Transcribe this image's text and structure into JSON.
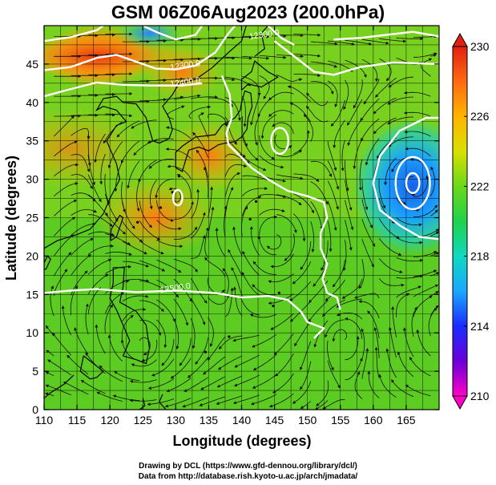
{
  "title": "GSM 06Z06Aug2023 (200.0hPa)",
  "credits": [
    "Drawing by DCL (https://www.gfd-dennou.org/library/dcl/)",
    "Data from http://database.rish.kyoto-u.ac.jp/arch/jmadata/"
  ],
  "x_axis": {
    "label": "Longitude (degrees)",
    "range": [
      110,
      170
    ],
    "ticks": [
      "110",
      "115",
      "120",
      "125",
      "130",
      "135",
      "140",
      "145",
      "150",
      "155",
      "160",
      "165"
    ]
  },
  "y_axis": {
    "label": "Latitude  (degrees)",
    "range": [
      0,
      50
    ],
    "ticks": [
      "0",
      "5",
      "10",
      "15",
      "20",
      "25",
      "30",
      "35",
      "40",
      "45"
    ]
  },
  "colorbar": {
    "range": [
      210,
      230
    ],
    "ticks": [
      "210",
      "214",
      "218",
      "222",
      "226",
      "230"
    ],
    "colors": [
      "#ff00c8",
      "#6a00d8",
      "#1a2cff",
      "#1aa8ff",
      "#10d8c0",
      "#20d24a",
      "#6ad81a",
      "#d8e000",
      "#ffb400",
      "#ff6a10",
      "#e02010"
    ]
  },
  "contour_labels": [
    {
      "text": "12300.0",
      "lon": 143.5,
      "lat": 48.5
    },
    {
      "text": "12300.0",
      "lon": 131.5,
      "lat": 44.5
    },
    {
      "text": "12400.0",
      "lon": 131.5,
      "lat": 42.3
    },
    {
      "text": "12500.0",
      "lon": 130.0,
      "lat": 15.5
    }
  ],
  "field": {
    "description_free": true,
    "warm_centers": [
      {
        "lon": 118,
        "lat": 46,
        "value": 229
      },
      {
        "lon": 131,
        "lat": 44,
        "value": 228
      },
      {
        "lon": 127,
        "lat": 25,
        "value": 227
      },
      {
        "lon": 135,
        "lat": 33,
        "value": 226
      }
    ],
    "cold_centers": [
      {
        "lon": 166,
        "lat": 29,
        "value": 219
      },
      {
        "lon": 126,
        "lat": 49,
        "value": 220
      }
    ]
  }
}
